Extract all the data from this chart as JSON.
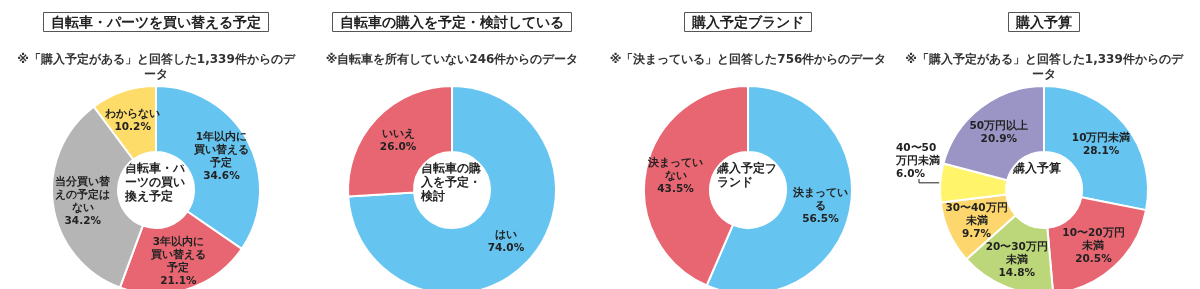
{
  "chart_data": [
    {
      "type": "donut",
      "title": "自転車・パーツを買い替える予定",
      "subtitle": "※「購入予定がある」と回答した1,339件からのデータ",
      "annotations": [
        "自転車・パーツの買い換え予定"
      ],
      "categories": [
        "1年以内に買い替える予定",
        "3年以内に買い替える予定",
        "当分買い替えの予定はない",
        "わからない"
      ],
      "values": [
        34.6,
        21.1,
        34.2,
        10.2
      ],
      "value_labels": [
        "34.6%",
        "21.1%",
        "34.2%",
        "10.2%"
      ],
      "colors": [
        "#65c4f0",
        "#e86672",
        "#b5b5b5",
        "#fddc6a"
      ]
    },
    {
      "type": "donut",
      "title": "自転車の購入を予定・検討している",
      "subtitle": "※自転車を所有していない246件からのデータ",
      "annotations": [
        "自転車の購入を予定・検討"
      ],
      "categories": [
        "はい",
        "いいえ"
      ],
      "values": [
        74.0,
        26.0
      ],
      "value_labels": [
        "74.0%",
        "26.0%"
      ],
      "colors": [
        "#65c4f0",
        "#e86672"
      ]
    },
    {
      "type": "donut",
      "title": "購入予定ブランド",
      "subtitle": "※「決まっている」と回答した756件からのデータ",
      "annotations": [
        "購入予定ブランド"
      ],
      "categories": [
        "決まっている",
        "決まっていない"
      ],
      "values": [
        56.5,
        43.5
      ],
      "value_labels": [
        "56.5%",
        "43.5%"
      ],
      "colors": [
        "#65c4f0",
        "#e86672"
      ]
    },
    {
      "type": "donut",
      "title": "購入予算",
      "subtitle": "※「購入予定がある」と回答した1,339件からのデータ",
      "annotations": [
        "購入予算"
      ],
      "categories": [
        "10万円未満",
        "10〜20万円未満",
        "20〜30万円未満",
        "30〜40万円未満",
        "40〜50万円未満",
        "50万円以上"
      ],
      "values": [
        28.1,
        20.5,
        14.8,
        9.7,
        6.0,
        20.9
      ],
      "value_labels": [
        "28.1%",
        "20.5%",
        "14.8%",
        "9.7%",
        "6.0%",
        "20.9%"
      ],
      "colors": [
        "#65c4f0",
        "#e86672",
        "#bcd77a",
        "#fdd66d",
        "#fff46a",
        "#9b95c6"
      ]
    }
  ]
}
